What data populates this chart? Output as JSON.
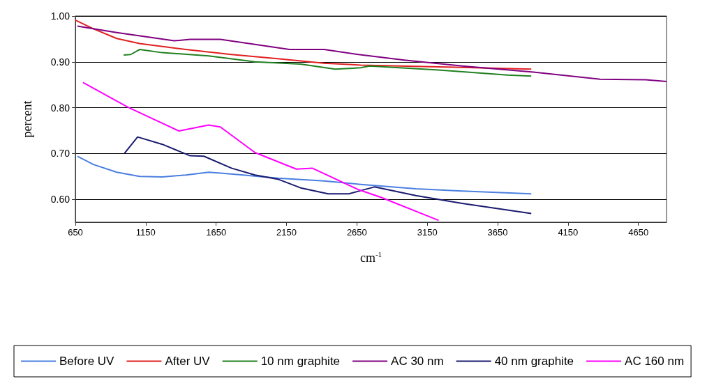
{
  "chart_data": {
    "type": "line",
    "xlabel": "cm$^{-1}$",
    "ylabel": "percent",
    "xlim": [
      650,
      4850
    ],
    "xticks": [
      650,
      1150,
      1650,
      2150,
      2650,
      3150,
      3650,
      4150,
      4650
    ],
    "ylim": [
      0.55,
      1.0
    ],
    "yticks": [
      {
        "value": 0.6,
        "label": "0.60"
      },
      {
        "value": 0.7,
        "label": "0.70"
      },
      {
        "value": 0.8,
        "label": "0.80"
      },
      {
        "value": 0.9,
        "label": "0.90"
      },
      {
        "value": 1.0,
        "label": "1.00"
      }
    ],
    "grid": "y",
    "legend": "bottom",
    "marker": "none",
    "line_style": "solid",
    "series": [
      {
        "name": "Before UV",
        "color": "#4a7fe0",
        "x": [
          665,
          778,
          944,
          1106,
          1268,
          1435,
          1597,
          1680,
          1842,
          2088,
          2417,
          2662,
          3069,
          3398,
          3889
        ],
        "values": [
          0.694,
          0.676,
          0.659,
          0.65,
          0.649,
          0.653,
          0.659,
          0.657,
          0.653,
          0.646,
          0.64,
          0.633,
          0.623,
          0.618,
          0.612
        ]
      },
      {
        "name": "After UV",
        "color": "#e02020",
        "x": [
          650,
          778,
          944,
          1106,
          1435,
          1759,
          2088,
          2417,
          2677,
          3398,
          3889
        ],
        "values": [
          0.991,
          0.972,
          0.951,
          0.94,
          0.927,
          0.916,
          0.907,
          0.897,
          0.893,
          0.888,
          0.884
        ]
      },
      {
        "name": "10 nm graphite",
        "color": "#208020",
        "x": [
          993,
          1043,
          1106,
          1268,
          1597,
          1926,
          2250,
          2495,
          2677,
          2740,
          3231,
          3722,
          3889
        ],
        "values": [
          0.915,
          0.916,
          0.927,
          0.92,
          0.913,
          0.9,
          0.895,
          0.884,
          0.887,
          0.891,
          0.882,
          0.871,
          0.869
        ]
      },
      {
        "name": "AC 30 nm",
        "color": "#800080",
        "x": [
          665,
          944,
          1352,
          1465,
          1680,
          1926,
          2171,
          2417,
          2662,
          2986,
          3398,
          3889,
          4379,
          4703,
          4850
        ],
        "values": [
          0.978,
          0.964,
          0.946,
          0.949,
          0.949,
          0.938,
          0.927,
          0.927,
          0.916,
          0.904,
          0.891,
          0.878,
          0.862,
          0.861,
          0.857
        ]
      },
      {
        "name": "40 nm graphite",
        "color": "#1a1a70",
        "x": [
          998,
          1092,
          1268,
          1465,
          1563,
          1759,
          1926,
          2088,
          2250,
          2446,
          2593,
          2775,
          3069,
          3398,
          3889
        ],
        "values": [
          0.7,
          0.736,
          0.72,
          0.695,
          0.694,
          0.668,
          0.653,
          0.644,
          0.625,
          0.612,
          0.612,
          0.627,
          0.608,
          0.591,
          0.569
        ]
      },
      {
        "name": "AC 160 nm",
        "color": "#ff00ff",
        "x": [
          704,
          1023,
          1386,
          1597,
          1680,
          1926,
          2220,
          2333,
          2662,
          2824,
          3231
        ],
        "values": [
          0.855,
          0.801,
          0.749,
          0.762,
          0.758,
          0.702,
          0.666,
          0.668,
          0.621,
          0.604,
          0.554
        ]
      }
    ]
  }
}
